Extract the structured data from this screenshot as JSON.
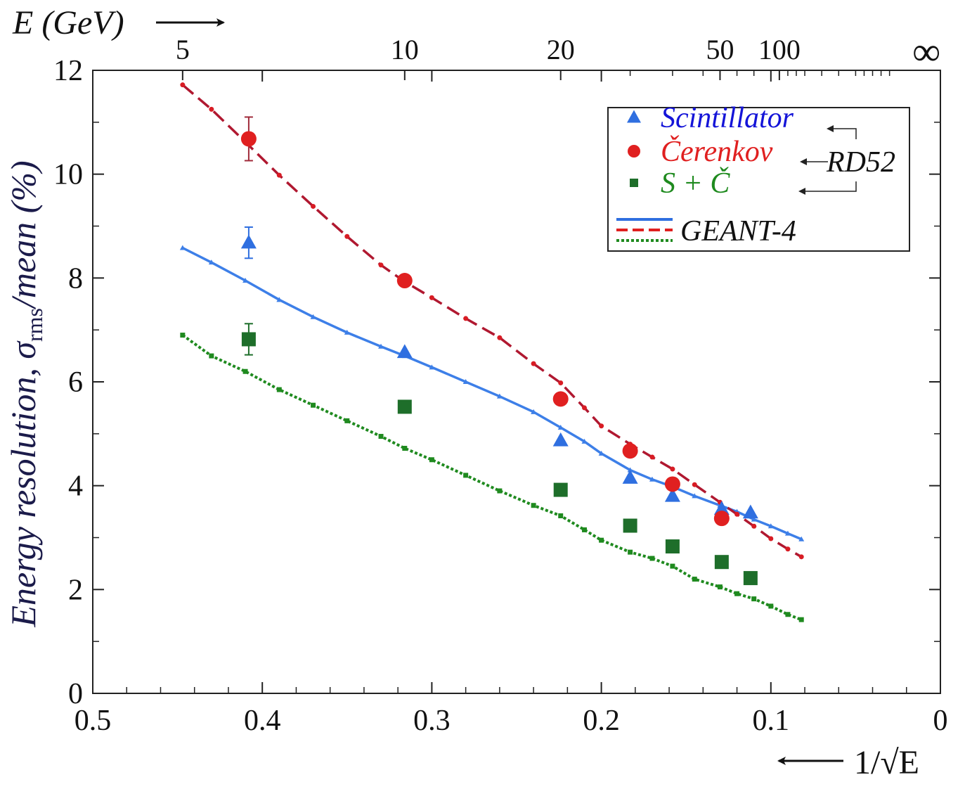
{
  "chart_data": {
    "type": "scatter",
    "xlabel": "1/√E",
    "ylabel": "Energy resolution, σ",
    "ylabel_sub": "rms",
    "ylabel_suffix": "/mean (%)",
    "top_axis_label": "E (GeV)",
    "xlim": [
      0.5,
      0
    ],
    "ylim": [
      0,
      12
    ],
    "x_ticks": [
      "0.5",
      "0.4",
      "0.3",
      "0.2",
      "0.1",
      "0"
    ],
    "y_ticks": [
      "0",
      "2",
      "4",
      "6",
      "8",
      "10",
      "12"
    ],
    "top_ticks": [
      {
        "label": "5",
        "x": 0.447
      },
      {
        "label": "10",
        "x": 0.316
      },
      {
        "label": "20",
        "x": 0.224
      },
      {
        "label": "50",
        "x": 0.13
      },
      {
        "label": "100",
        "x": 0.095
      },
      {
        "label": "∞",
        "x": 0.0
      }
    ],
    "legend": {
      "placement": "top-right",
      "group_label": "RD52",
      "sim_label": "GEANT-4"
    },
    "series": [
      {
        "name": "Scintillator",
        "kind": "data",
        "marker": "triangle",
        "color": "#2f6fe0",
        "text_color": "#1414d8",
        "points": [
          [
            0.408,
            8.68
          ],
          [
            0.316,
            6.57
          ],
          [
            0.224,
            4.87
          ],
          [
            0.183,
            4.15
          ],
          [
            0.158,
            3.8
          ],
          [
            0.129,
            3.55
          ],
          [
            0.112,
            3.48
          ]
        ],
        "errors": [
          0.3,
          null,
          null,
          null,
          null,
          null,
          null
        ]
      },
      {
        "name": "Čerenkov",
        "kind": "data",
        "marker": "circle",
        "color": "#e02020",
        "text_color": "#e02020",
        "points": [
          [
            0.408,
            10.68
          ],
          [
            0.316,
            7.95
          ],
          [
            0.224,
            5.67
          ],
          [
            0.183,
            4.67
          ],
          [
            0.158,
            4.03
          ],
          [
            0.129,
            3.37
          ]
        ],
        "errors": [
          0.42,
          null,
          null,
          null,
          null,
          null
        ]
      },
      {
        "name": "S + Č",
        "kind": "data",
        "marker": "square",
        "color": "#1e6e2a",
        "text_color": "#1e8a1e",
        "points": [
          [
            0.408,
            6.82
          ],
          [
            0.316,
            5.52
          ],
          [
            0.224,
            3.92
          ],
          [
            0.183,
            3.23
          ],
          [
            0.158,
            2.83
          ],
          [
            0.129,
            2.53
          ],
          [
            0.112,
            2.22
          ]
        ],
        "errors": [
          0.3,
          null,
          null,
          null,
          null,
          null,
          null
        ]
      },
      {
        "kind": "sim",
        "style": "solid",
        "color": "#3d7fe8",
        "points": [
          [
            0.447,
            8.58
          ],
          [
            0.43,
            8.3
          ],
          [
            0.41,
            7.95
          ],
          [
            0.39,
            7.58
          ],
          [
            0.37,
            7.25
          ],
          [
            0.35,
            6.95
          ],
          [
            0.33,
            6.68
          ],
          [
            0.316,
            6.5
          ],
          [
            0.3,
            6.28
          ],
          [
            0.28,
            6.0
          ],
          [
            0.26,
            5.72
          ],
          [
            0.24,
            5.42
          ],
          [
            0.224,
            5.12
          ],
          [
            0.21,
            4.85
          ],
          [
            0.2,
            4.62
          ],
          [
            0.183,
            4.3
          ],
          [
            0.17,
            4.12
          ],
          [
            0.158,
            3.98
          ],
          [
            0.145,
            3.8
          ],
          [
            0.13,
            3.62
          ],
          [
            0.12,
            3.5
          ],
          [
            0.11,
            3.35
          ],
          [
            0.1,
            3.22
          ],
          [
            0.09,
            3.08
          ],
          [
            0.082,
            2.97
          ]
        ]
      },
      {
        "kind": "sim",
        "style": "dashed",
        "color": "#b01830",
        "points": [
          [
            0.447,
            11.72
          ],
          [
            0.43,
            11.25
          ],
          [
            0.41,
            10.62
          ],
          [
            0.39,
            9.98
          ],
          [
            0.37,
            9.38
          ],
          [
            0.35,
            8.8
          ],
          [
            0.33,
            8.25
          ],
          [
            0.316,
            7.93
          ],
          [
            0.3,
            7.62
          ],
          [
            0.28,
            7.22
          ],
          [
            0.26,
            6.85
          ],
          [
            0.24,
            6.35
          ],
          [
            0.224,
            5.98
          ],
          [
            0.21,
            5.5
          ],
          [
            0.2,
            5.15
          ],
          [
            0.183,
            4.8
          ],
          [
            0.17,
            4.55
          ],
          [
            0.158,
            4.32
          ],
          [
            0.145,
            4.02
          ],
          [
            0.13,
            3.68
          ],
          [
            0.12,
            3.45
          ],
          [
            0.11,
            3.22
          ],
          [
            0.1,
            2.98
          ],
          [
            0.09,
            2.78
          ],
          [
            0.082,
            2.63
          ]
        ]
      },
      {
        "kind": "sim",
        "style": "dotted",
        "color": "#1f8a1f",
        "points": [
          [
            0.447,
            6.9
          ],
          [
            0.43,
            6.5
          ],
          [
            0.41,
            6.2
          ],
          [
            0.39,
            5.85
          ],
          [
            0.37,
            5.55
          ],
          [
            0.35,
            5.25
          ],
          [
            0.33,
            4.95
          ],
          [
            0.316,
            4.72
          ],
          [
            0.3,
            4.5
          ],
          [
            0.28,
            4.2
          ],
          [
            0.26,
            3.9
          ],
          [
            0.24,
            3.62
          ],
          [
            0.224,
            3.42
          ],
          [
            0.21,
            3.15
          ],
          [
            0.2,
            2.95
          ],
          [
            0.183,
            2.72
          ],
          [
            0.17,
            2.6
          ],
          [
            0.158,
            2.45
          ],
          [
            0.145,
            2.2
          ],
          [
            0.13,
            2.05
          ],
          [
            0.12,
            1.92
          ],
          [
            0.11,
            1.82
          ],
          [
            0.1,
            1.68
          ],
          [
            0.09,
            1.52
          ],
          [
            0.082,
            1.42
          ]
        ]
      }
    ]
  }
}
